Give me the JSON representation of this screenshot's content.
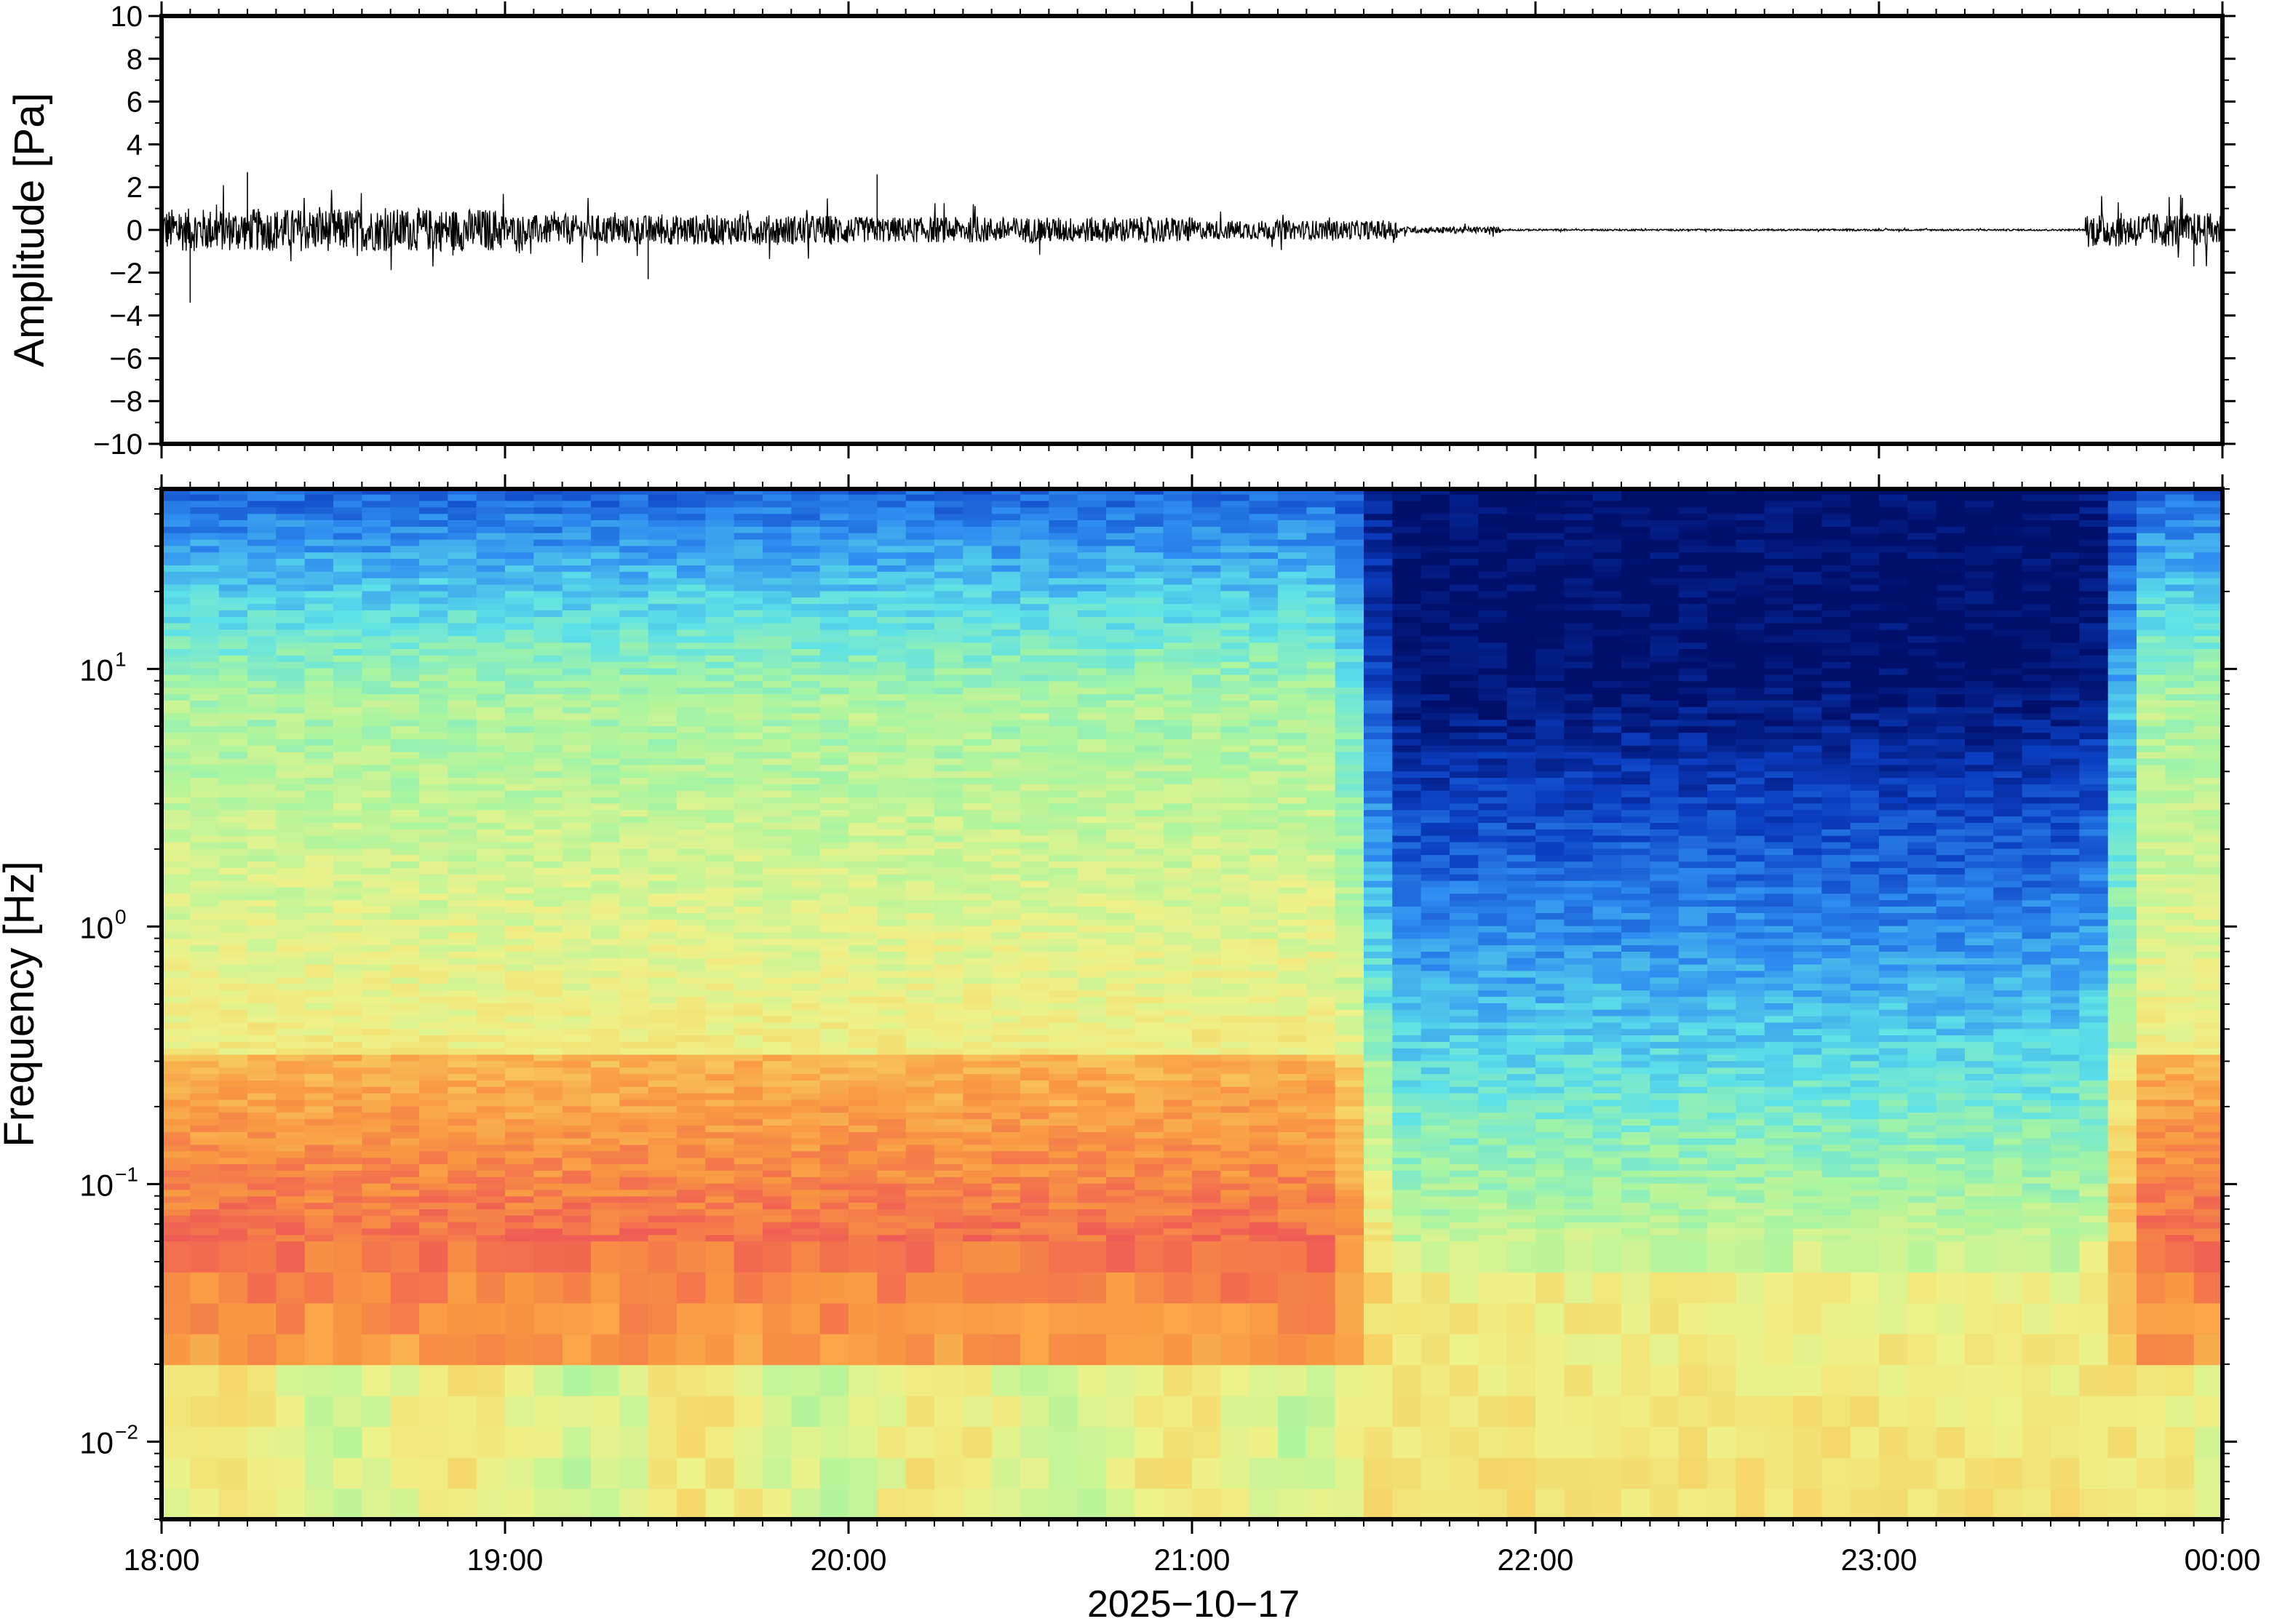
{
  "chart_data": [
    {
      "type": "line",
      "ylabel": "Amplitude [Pa]",
      "ylim": [
        -10,
        10
      ],
      "yticks": [
        10,
        8,
        6,
        4,
        2,
        0,
        -2,
        -4,
        -6,
        -8,
        -10
      ],
      "ytick_labels": [
        "10",
        "8",
        "6",
        "4",
        "2",
        "0",
        "−2",
        "−4",
        "−6",
        "−8",
        "−10"
      ],
      "xlim": [
        "18:00",
        "00:00"
      ],
      "series": [
        {
          "color": "#000000",
          "envelope_segments": [
            {
              "from_h": 0.0,
              "to_h": 1.0,
              "halfwidth_pa": 1.0
            },
            {
              "from_h": 1.0,
              "to_h": 2.0,
              "halfwidth_pa": 0.7
            },
            {
              "from_h": 2.0,
              "to_h": 3.0,
              "halfwidth_pa": 0.6
            },
            {
              "from_h": 3.0,
              "to_h": 3.6,
              "halfwidth_pa": 0.45
            },
            {
              "from_h": 3.6,
              "to_h": 3.9,
              "halfwidth_pa": 0.15
            },
            {
              "from_h": 3.9,
              "to_h": 5.6,
              "halfwidth_pa": 0.04
            },
            {
              "from_h": 5.6,
              "to_h": 6.0,
              "halfwidth_pa": 0.8
            }
          ],
          "peaks": [
            {
              "x": "18:15",
              "y": 2.7
            },
            {
              "x": "18:05",
              "y": -3.4
            },
            {
              "x": "20:05",
              "y": 2.6
            },
            {
              "x": "19:25",
              "y": -2.3
            },
            {
              "x": "23:53",
              "y": 1.5
            },
            {
              "x": "23:55",
              "y": -1.7
            }
          ]
        }
      ]
    },
    {
      "type": "heatmap",
      "ylabel": "Frequency [Hz]",
      "xlabel": "2025−10−17",
      "xticks": [
        "18:00",
        "19:00",
        "20:00",
        "21:00",
        "22:00",
        "23:00",
        "00:00"
      ],
      "yscale": "log",
      "ylim": [
        0.005,
        50
      ],
      "yticks": [
        0.01,
        0.1,
        1,
        10
      ],
      "ytick_labels": [
        {
          "base": "10",
          "exp": "−2"
        },
        {
          "base": "10",
          "exp": "−1"
        },
        {
          "base": "10",
          "exp": "0"
        },
        {
          "base": "10",
          "exp": "1"
        }
      ],
      "colormap": "rainbow",
      "colors": [
        "#000f6a",
        "#0b3ec2",
        "#2f8cf0",
        "#5de1e8",
        "#a9f5a0",
        "#eef28a",
        "#f7d161",
        "#f99a42",
        "#ef5a55",
        "#ff9aa8"
      ],
      "structure": {
        "quiet_period": [
          "21:35",
          "23:37"
        ],
        "dense_low_freq_band_hz": [
          0.02,
          0.3
        ],
        "secondary_band_hz": [
          0.3,
          5
        ]
      }
    }
  ]
}
